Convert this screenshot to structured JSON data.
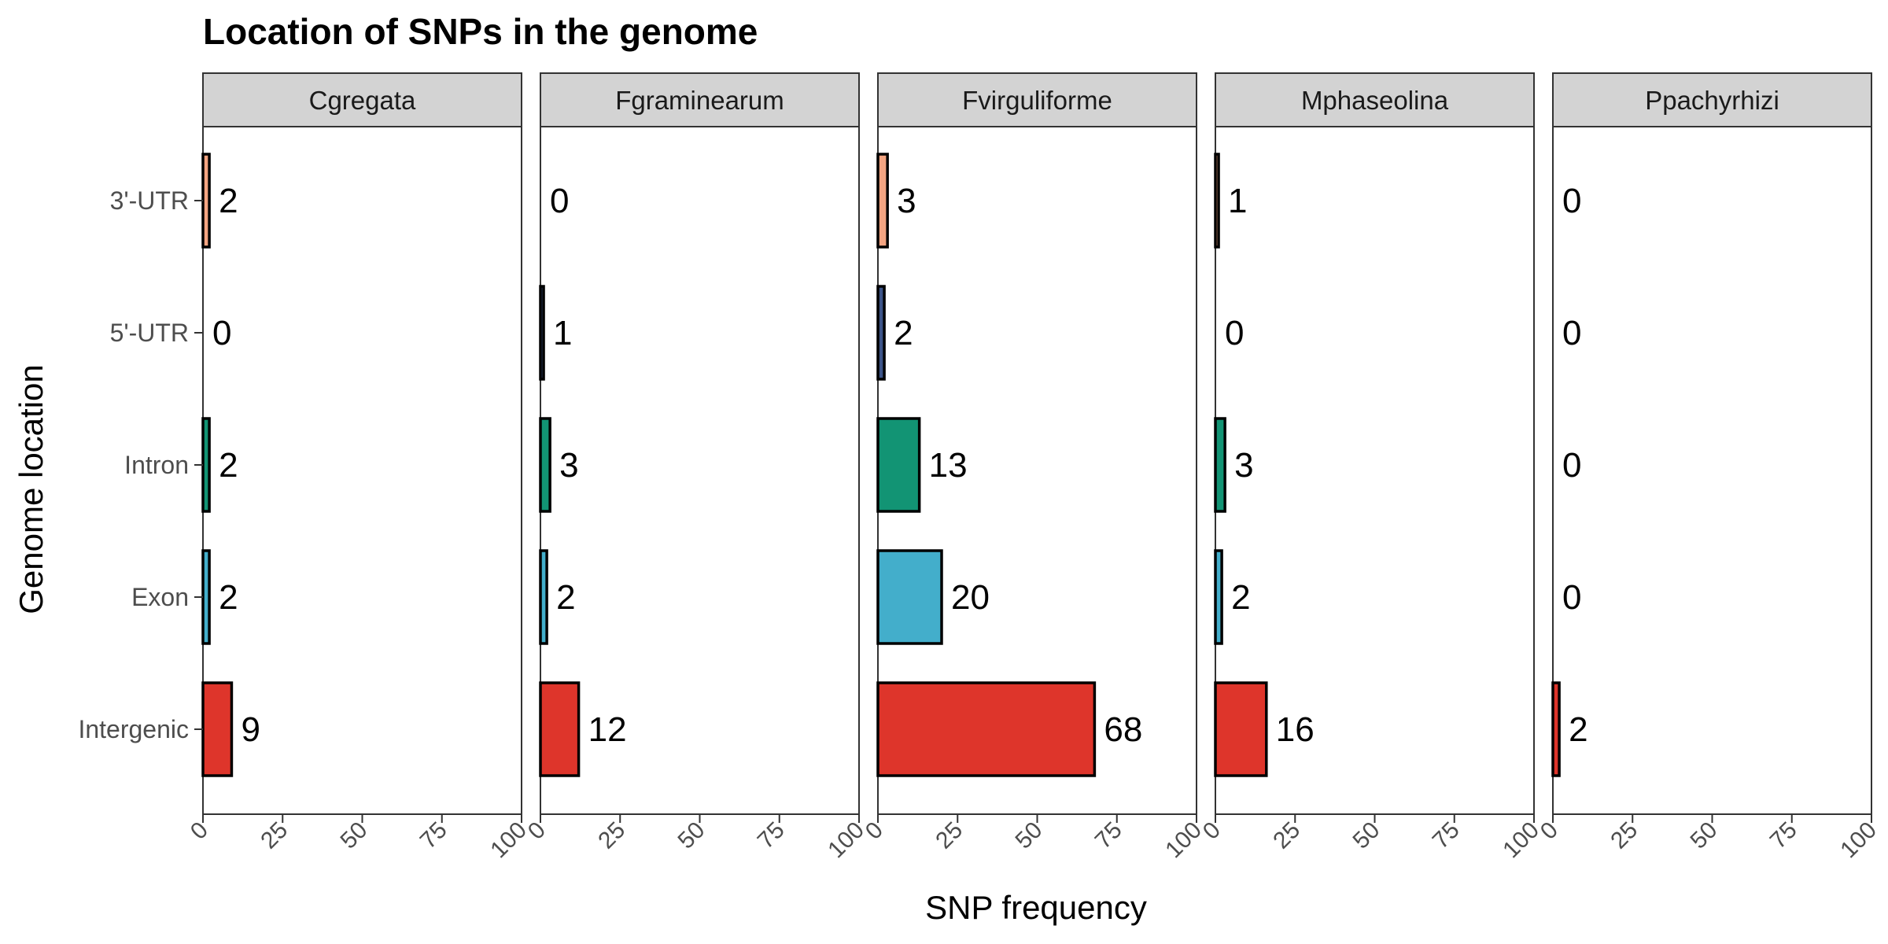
{
  "chart_data": {
    "type": "bar",
    "orientation": "horizontal",
    "title": "Location of SNPs in the genome",
    "xlabel": "SNP frequency",
    "ylabel": "Genome location",
    "xlim": [
      0,
      100
    ],
    "xticks": [
      "0",
      "25",
      "50",
      "75",
      "100"
    ],
    "categories": [
      "3'-UTR",
      "5'-UTR",
      "Intron",
      "Exon",
      "Intergenic"
    ],
    "category_colors": {
      "3'-UTR": "#F4A582",
      "5'-UTR": "#3C5488",
      "Intron": "#129474",
      "Exon": "#43AECB",
      "Intergenic": "#DE352B"
    },
    "strip_background": "#D3D3D3",
    "grid": false,
    "legend": "none",
    "facets": [
      {
        "name": "Cgregata",
        "values": [
          2,
          0,
          2,
          2,
          9
        ]
      },
      {
        "name": "Fgraminearum",
        "values": [
          0,
          1,
          3,
          2,
          12
        ]
      },
      {
        "name": "Fvirguliforme",
        "values": [
          3,
          2,
          13,
          20,
          68
        ]
      },
      {
        "name": "Mphaseolina",
        "values": [
          1,
          0,
          3,
          2,
          16
        ]
      },
      {
        "name": "Ppachyrhizi",
        "values": [
          0,
          0,
          0,
          0,
          2
        ]
      }
    ]
  }
}
